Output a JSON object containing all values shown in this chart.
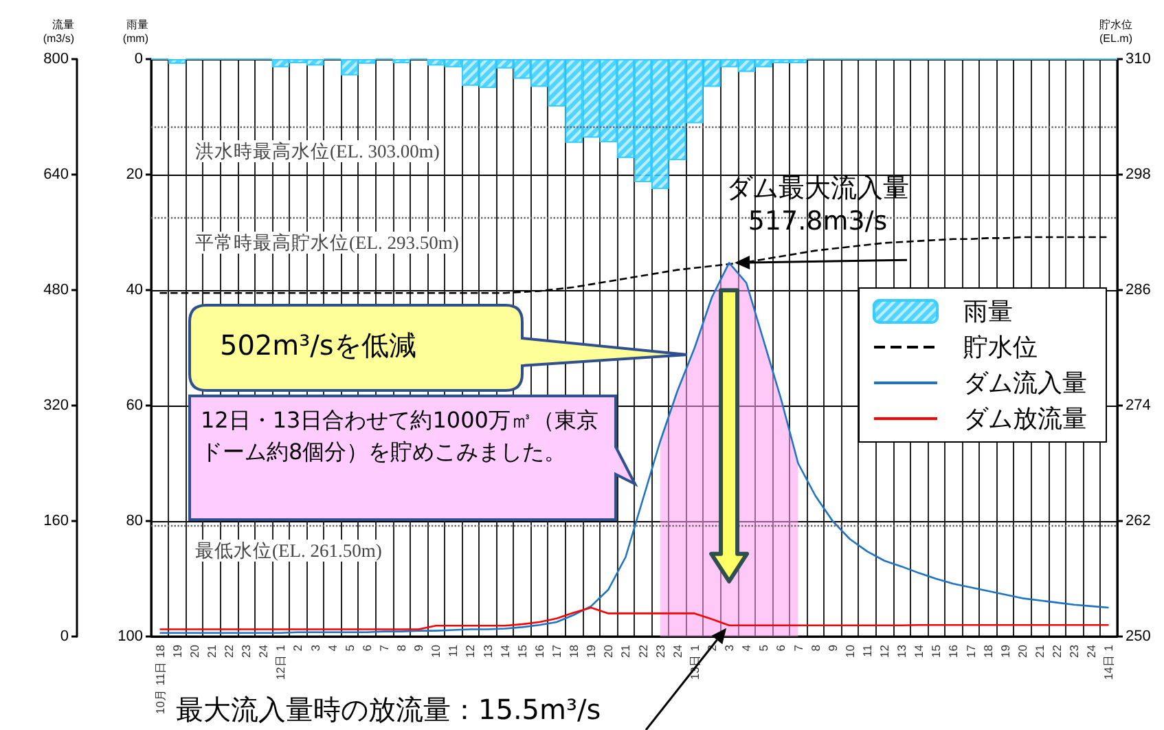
{
  "chart_data": {
    "type": "line",
    "categories": [
      "10月 11日 18",
      "19",
      "20",
      "21",
      "22",
      "23",
      "24",
      "12日 1",
      "2",
      "3",
      "4",
      "5",
      "6",
      "7",
      "8",
      "9",
      "10",
      "11",
      "12",
      "13",
      "14",
      "15",
      "16",
      "17",
      "18",
      "19",
      "20",
      "21",
      "22",
      "23",
      "24",
      "13日 1",
      "2",
      "3",
      "4",
      "5",
      "6",
      "7",
      "8",
      "9",
      "10",
      "11",
      "12",
      "13",
      "14",
      "15",
      "16",
      "17",
      "18",
      "19",
      "20",
      "21",
      "22",
      "23",
      "24",
      "14日 1"
    ],
    "series": [
      {
        "type": "area",
        "color": "#ff9cf0",
        "values": [
          null,
          null,
          null,
          null,
          null,
          null,
          null,
          null,
          null,
          null,
          null,
          null,
          null,
          null,
          null,
          null,
          null,
          null,
          null,
          null,
          null,
          null,
          null,
          null,
          null,
          null,
          null,
          null,
          null,
          270,
          340,
          400,
          470,
          517.8,
          490,
          410,
          330,
          240,
          null,
          null,
          null,
          null,
          null,
          null,
          null,
          null,
          null,
          null,
          null,
          null,
          null,
          null,
          null,
          null,
          null,
          null
        ]
      },
      {
        "name": "雨量",
        "type": "bar",
        "axis": "y3",
        "color": "#33ccff",
        "values": [
          0,
          0.8,
          0,
          0,
          0,
          0,
          0,
          1.4,
          0.7,
          1.1,
          0,
          2.8,
          0.8,
          0,
          0.7,
          0,
          1.1,
          1.4,
          4.6,
          5.0,
          1.6,
          3.4,
          4.8,
          8.2,
          14.5,
          13.6,
          14.4,
          17.1,
          21.3,
          22.5,
          17.5,
          11.1,
          4.8,
          1.4,
          2.2,
          1.4,
          0.7,
          0.7,
          0,
          0,
          0,
          0,
          0,
          0,
          0,
          0,
          0,
          0,
          0,
          0,
          0,
          0,
          0,
          0,
          0,
          0
        ]
      },
      {
        "name": "貯水位",
        "axis": "y2",
        "color": "#000000",
        "line_style": "dashed",
        "values": [
          285.7,
          285.7,
          285.7,
          285.7,
          285.7,
          285.7,
          285.7,
          285.7,
          285.7,
          285.7,
          285.7,
          285.7,
          285.7,
          285.7,
          285.7,
          285.7,
          285.7,
          285.7,
          285.7,
          285.7,
          285.7,
          285.8,
          285.9,
          286.1,
          286.3,
          286.6,
          286.9,
          287.2,
          287.5,
          287.8,
          288.1,
          288.3,
          288.5,
          288.7,
          288.9,
          289.2,
          289.5,
          289.8,
          290.1,
          290.3,
          290.5,
          290.7,
          290.9,
          291.0,
          291.1,
          291.2,
          291.3,
          291.3,
          291.4,
          291.4,
          291.5,
          291.5,
          291.5,
          291.5,
          291.5,
          291.5
        ]
      },
      {
        "name": "ダム流入量",
        "color": "#1f73c4",
        "values": [
          5,
          5,
          5,
          5,
          5,
          5,
          5,
          5,
          6,
          6,
          6,
          6,
          6,
          7,
          7,
          8,
          8,
          9,
          10,
          10,
          11,
          13,
          16,
          20,
          30,
          42,
          65,
          110,
          190,
          270,
          340,
          400,
          470,
          517.8,
          490,
          410,
          330,
          240,
          195,
          160,
          135,
          118,
          105,
          97,
          88,
          80,
          73,
          68,
          63,
          58,
          53,
          50,
          47,
          44,
          42,
          40
        ]
      },
      {
        "name": "ダム放流量",
        "color": "#ff0000",
        "values": [
          10,
          10,
          10,
          10,
          10,
          10,
          10,
          10,
          10,
          10,
          10,
          10,
          10,
          10,
          10,
          10,
          15,
          15,
          15,
          15,
          15,
          17,
          20,
          25,
          33,
          40,
          32,
          32,
          32,
          32,
          32,
          32,
          24,
          15.5,
          15.5,
          15.5,
          15.5,
          15.5,
          15.5,
          15.5,
          15.5,
          15.5,
          15.5,
          15.5,
          16,
          16,
          16,
          16,
          16,
          16,
          16,
          16,
          16,
          16,
          16,
          16
        ]
      }
    ],
    "ylabel": "流量\n(m3/s)",
    "y2label": "貯水位\n(EL.m)",
    "y3label": "雨量\n(mm)",
    "ylim": [
      0,
      800
    ],
    "yticks": [
      0,
      160,
      320,
      480,
      640,
      800
    ],
    "y2lim": [
      250,
      310
    ],
    "y2ticks": [
      250,
      262,
      274,
      286,
      298,
      310
    ],
    "y3lim": [
      100,
      0
    ],
    "y3ticks": [
      0,
      20,
      40,
      60,
      80,
      100
    ],
    "ref_lines": [
      {
        "axis": "y2",
        "value": 303.0,
        "label": "洪水時最高水位(EL. 303.00m)",
        "color": "#666666",
        "line_style": "dotted"
      },
      {
        "axis": "y2",
        "value": 293.5,
        "label": "平常時最高貯水位(EL. 293.50m)",
        "color": "#666666",
        "line_style": "dotted"
      },
      {
        "axis": "y2",
        "value": 261.5,
        "label": "最低水位(EL. 261.50m)",
        "color": "#666666",
        "line_style": "dotted"
      }
    ],
    "annotations": [
      "ダム最大流入量\n517.8m3/s",
      "502m³/sを低減",
      "12日・13日合わせて約1000万㎥（東京ドーム約8個分）を貯めこみました。",
      "最大流入量時の放流量：15.5m³/s"
    ],
    "legend": "right",
    "grid": true,
    "marker": "none"
  }
}
